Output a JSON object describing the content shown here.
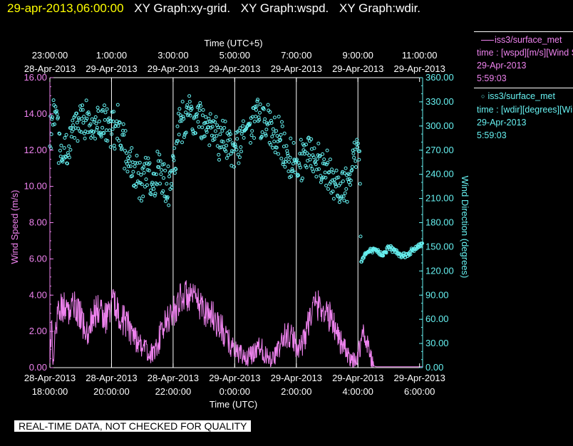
{
  "header": {
    "timestamp": "29-apr-2013,06:00:00",
    "graph_titles": [
      "XY Graph:xy-grid.",
      "XY Graph:wspd.",
      "XY Graph:wdir."
    ]
  },
  "footer": {
    "note": "REAL-TIME DATA, NOT CHECKED FOR QUALITY"
  },
  "legend": [
    {
      "title": "iss3/surface_met",
      "line1": "time : [wspd][m/s][Wind Speed]",
      "line2": "29-Apr-2013",
      "line3": "5:59:03",
      "color": "#ee82ee",
      "marker": "line"
    },
    {
      "title": "iss3/surface_met",
      "line1": "time : [wdir][degrees][Wind Direction]",
      "line2": "29-Apr-2013",
      "line3": "5:59:03",
      "color": "#66f0f0",
      "marker": "circle"
    }
  ],
  "chart_data": {
    "type": "line+scatter",
    "x_range_hours": [
      0,
      12.1
    ],
    "x_start_utc": "28-Apr-2013 18:00",
    "top_axis": {
      "label": "Time (UTC+5)",
      "ticks": [
        {
          "h": 0,
          "date": "28-Apr-2013",
          "time": "23:00:00"
        },
        {
          "h": 2,
          "date": "29-Apr-2013",
          "time": "1:00:00"
        },
        {
          "h": 4,
          "date": "29-Apr-2013",
          "time": "3:00:00"
        },
        {
          "h": 6,
          "date": "29-Apr-2013",
          "time": "5:00:00"
        },
        {
          "h": 8,
          "date": "29-Apr-2013",
          "time": "7:00:00"
        },
        {
          "h": 10,
          "date": "29-Apr-2013",
          "time": "9:00:00"
        },
        {
          "h": 12,
          "date": "29-Apr-2013",
          "time": "11:00:00"
        }
      ]
    },
    "bottom_axis": {
      "label": "Time (UTC)",
      "ticks": [
        {
          "h": 0,
          "date": "28-Apr-2013",
          "time": "18:00:00"
        },
        {
          "h": 2,
          "date": "28-Apr-2013",
          "time": "20:00:00"
        },
        {
          "h": 4,
          "date": "28-Apr-2013",
          "time": "22:00:00"
        },
        {
          "h": 6,
          "date": "29-Apr-2013",
          "time": "0:00:00"
        },
        {
          "h": 8,
          "date": "29-Apr-2013",
          "time": "2:00:00"
        },
        {
          "h": 10,
          "date": "29-Apr-2013",
          "time": "4:00:00"
        },
        {
          "h": 12,
          "date": "29-Apr-2013",
          "time": "6:00:00"
        }
      ]
    },
    "left_axis": {
      "label": "Wind Speed (m/s)",
      "range": [
        0,
        16
      ],
      "ticks": [
        "0.00",
        "2.00",
        "4.00",
        "6.00",
        "8.00",
        "10.00",
        "12.00",
        "14.00",
        "16.00"
      ],
      "tick_values": [
        0,
        2,
        4,
        6,
        8,
        10,
        12,
        14,
        16
      ],
      "color": "#ee82ee"
    },
    "right_axis": {
      "label": "Wind Direction (degrees)",
      "range": [
        0,
        360
      ],
      "ticks": [
        "0.00",
        "30.00",
        "60.00",
        "90.00",
        "120.00",
        "150.00",
        "180.00",
        "210.00",
        "240.00",
        "270.00",
        "300.00",
        "330.00",
        "360.00"
      ],
      "tick_values": [
        0,
        30,
        60,
        90,
        120,
        150,
        180,
        210,
        240,
        270,
        300,
        330,
        360
      ],
      "color": "#66f0f0"
    },
    "grid_vertical_hours": [
      2,
      4,
      6,
      8,
      10
    ],
    "series": [
      {
        "name": "wspd",
        "axis": "left",
        "style": "line",
        "color": "#ee82ee",
        "anchor_hours": [
          0.0,
          0.05,
          0.1,
          0.2,
          0.3,
          0.4,
          0.5,
          0.6,
          0.7,
          0.8,
          0.9,
          1.0,
          1.2,
          1.4,
          1.6,
          1.8,
          2.0,
          2.2,
          2.4,
          2.6,
          2.8,
          3.0,
          3.2,
          3.4,
          3.6,
          3.8,
          4.0,
          4.2,
          4.4,
          4.6,
          4.8,
          5.0,
          5.2,
          5.4,
          5.6,
          5.8,
          6.0,
          6.2,
          6.4,
          6.6,
          6.8,
          7.0,
          7.2,
          7.4,
          7.6,
          7.8,
          8.0,
          8.2,
          8.4,
          8.6,
          8.8,
          9.0,
          9.2,
          9.4,
          9.6,
          9.8,
          10.0,
          10.1,
          10.2,
          10.3,
          10.4,
          10.5,
          10.6,
          12.1
        ],
        "anchor_values": [
          0.2,
          2.5,
          0.4,
          2.3,
          3.4,
          3.2,
          3.5,
          3.0,
          3.2,
          3.3,
          3.0,
          2.8,
          1.8,
          3.0,
          3.2,
          2.7,
          3.6,
          3.2,
          2.6,
          2.2,
          1.6,
          1.2,
          0.8,
          0.8,
          1.8,
          2.6,
          3.0,
          3.8,
          4.0,
          3.8,
          3.6,
          3.2,
          3.0,
          2.6,
          2.0,
          1.4,
          1.0,
          0.7,
          0.5,
          0.8,
          1.3,
          0.7,
          0.5,
          0.9,
          1.7,
          1.8,
          1.2,
          1.3,
          2.6,
          3.5,
          3.4,
          2.9,
          2.6,
          1.6,
          0.9,
          0.3,
          0.6,
          1.6,
          1.8,
          1.5,
          0.7,
          0.1,
          0.05,
          0.05
        ],
        "noise_amplitude": 0.9
      },
      {
        "name": "wdir",
        "axis": "right",
        "style": "scatter-circle",
        "color": "#66f0f0",
        "anchor_hours": [
          0.0,
          0.15,
          0.3,
          0.5,
          0.8,
          1.0,
          1.2,
          1.4,
          1.6,
          1.8,
          2.0,
          2.2,
          2.4,
          2.6,
          2.8,
          3.0,
          3.2,
          3.4,
          3.6,
          3.8,
          4.0,
          4.2,
          4.4,
          4.6,
          4.8,
          5.0,
          5.2,
          5.4,
          5.6,
          5.8,
          6.0,
          6.2,
          6.4,
          6.6,
          6.8,
          7.0,
          7.2,
          7.4,
          7.6,
          7.8,
          8.0,
          8.2,
          8.4,
          8.6,
          8.8,
          9.0,
          9.2,
          9.4,
          9.6,
          9.8,
          10.0,
          10.05,
          10.1,
          10.2,
          10.4,
          10.6,
          10.8,
          11.0,
          11.2,
          11.4,
          11.6,
          12.1
        ],
        "anchor_values": [
          290,
          310,
          280,
          260,
          300,
          305,
          310,
          290,
          300,
          305,
          300,
          310,
          270,
          250,
          240,
          230,
          240,
          240,
          250,
          220,
          240,
          300,
          305,
          320,
          310,
          300,
          300,
          290,
          280,
          280,
          270,
          285,
          300,
          305,
          305,
          305,
          290,
          280,
          270,
          260,
          250,
          255,
          265,
          260,
          250,
          245,
          240,
          220,
          230,
          250,
          275,
          280,
          130,
          140,
          145,
          145,
          140,
          150,
          145,
          140,
          140,
          155
        ],
        "noise_amplitude": 35
      }
    ]
  }
}
